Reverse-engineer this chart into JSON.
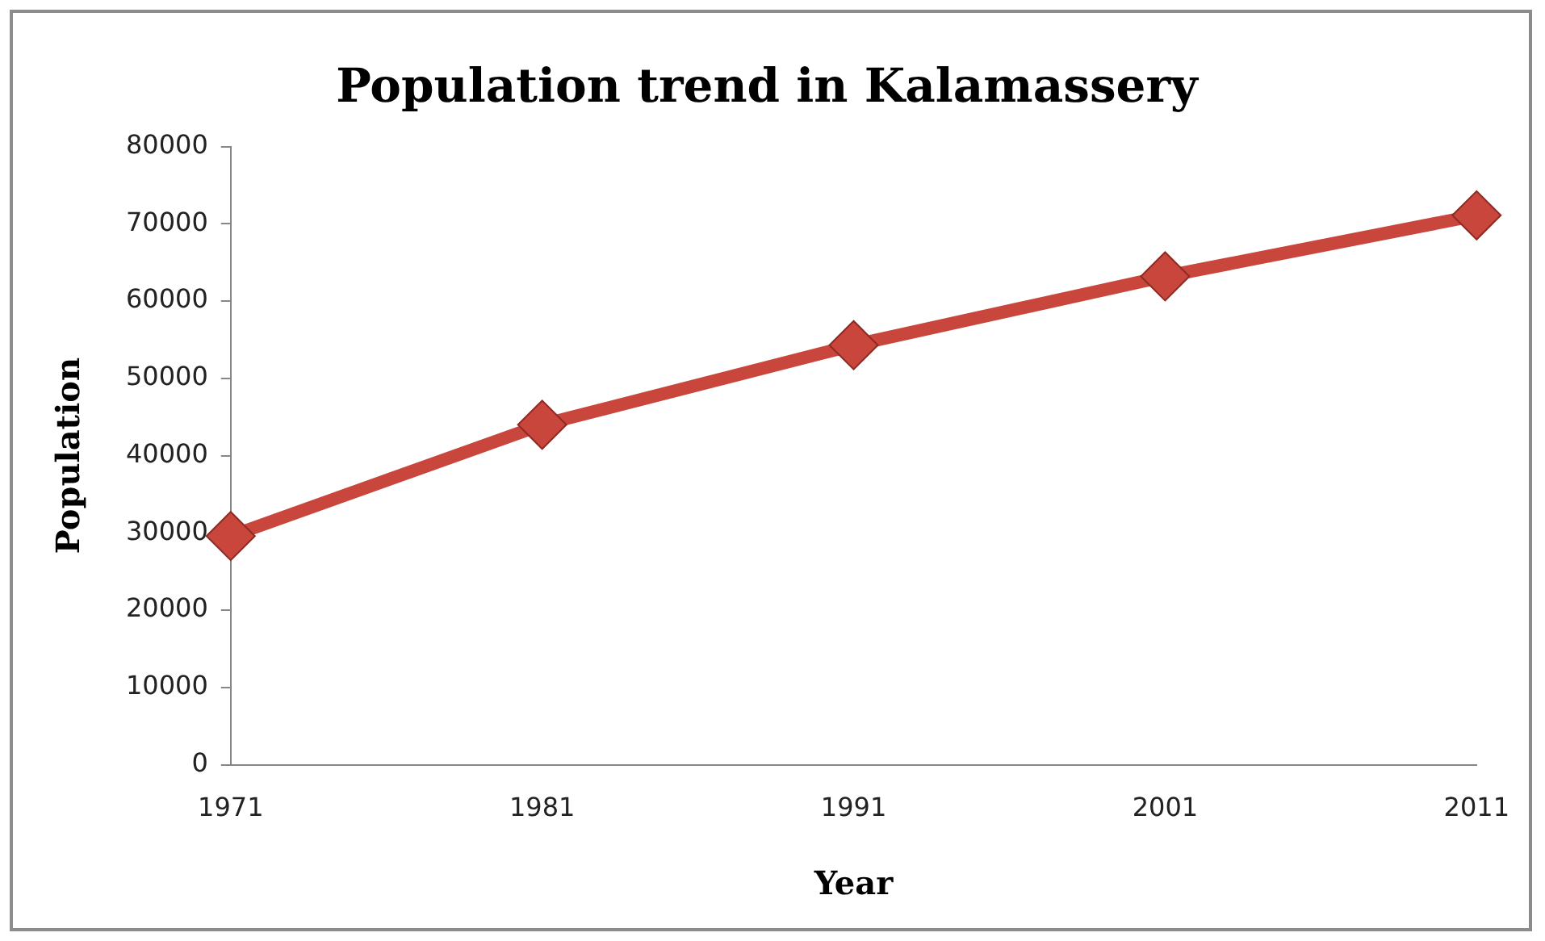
{
  "chart_data": {
    "type": "line",
    "title": "Population trend in Kalamassery",
    "xlabel": "Year",
    "ylabel": "Population",
    "categories": [
      "1971",
      "1981",
      "1991",
      "2001",
      "2011"
    ],
    "series": [
      {
        "color": "#c8463c",
        "values": [
          29600,
          44000,
          54300,
          63200,
          71100
        ]
      }
    ],
    "ylim": [
      0,
      80000
    ],
    "yticks": [
      0,
      10000,
      20000,
      30000,
      40000,
      50000,
      60000,
      70000,
      80000
    ],
    "grid": false,
    "legend": false,
    "marker": "diamond",
    "line_style": "solid"
  }
}
